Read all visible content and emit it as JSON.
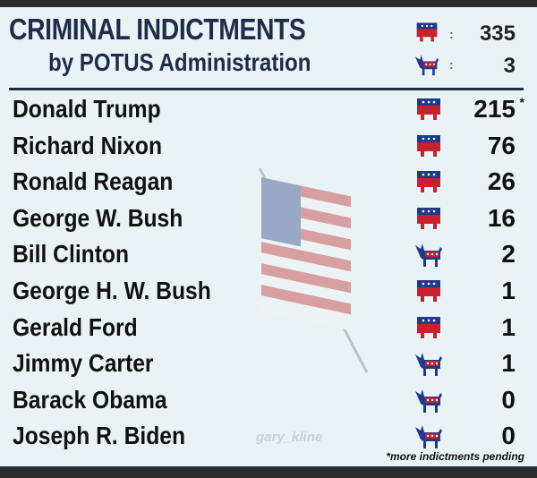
{
  "header": {
    "title": "CRIMINAL INDICTMENTS",
    "subtitle": "by POTUS Administration",
    "tallies": [
      {
        "party": "republican",
        "icon": "elephant-icon",
        "total": "335"
      },
      {
        "party": "democrat",
        "icon": "donkey-icon",
        "total": "3"
      }
    ]
  },
  "rows": [
    {
      "name": "Donald Trump",
      "party": "republican",
      "count": "215",
      "mark": "*"
    },
    {
      "name": "Richard Nixon",
      "party": "republican",
      "count": "76"
    },
    {
      "name": "Ronald Reagan",
      "party": "republican",
      "count": "26"
    },
    {
      "name": "George W. Bush",
      "party": "republican",
      "count": "16"
    },
    {
      "name": "Bill Clinton",
      "party": "democrat",
      "count": "2"
    },
    {
      "name": "George H. W. Bush",
      "party": "republican",
      "count": "1"
    },
    {
      "name": "Gerald Ford",
      "party": "republican",
      "count": "1"
    },
    {
      "name": "Jimmy Carter",
      "party": "democrat",
      "count": "1"
    },
    {
      "name": "Barack Obama",
      "party": "democrat",
      "count": "0"
    },
    {
      "name": "Joseph R. Biden",
      "party": "democrat",
      "count": "0"
    }
  ],
  "watermark": "gary_kline",
  "footnote": "*more indictments pending",
  "colors": {
    "navy": "#1e2b49",
    "republican_red": "#c8202c",
    "democrat_blue": "#1f3a8a",
    "background": "#e9f3f6"
  }
}
